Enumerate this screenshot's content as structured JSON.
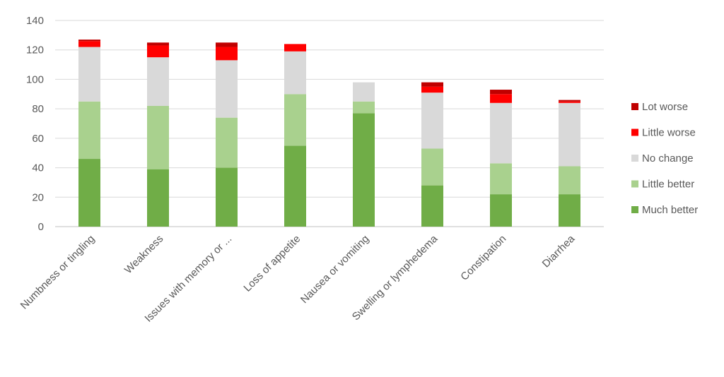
{
  "chart_data": {
    "type": "bar",
    "stacked": true,
    "title": "",
    "xlabel": "",
    "ylabel": "",
    "ylim": [
      0,
      140
    ],
    "yticks": [
      0,
      20,
      40,
      60,
      80,
      100,
      120,
      140
    ],
    "grid": true,
    "legend_position": "right",
    "categories": [
      "Numbness or tingling",
      "Weakness",
      "Issues with memory or ...",
      "Loss of appetite",
      "Nausea or vomiting",
      "Swelling or lymphedema",
      "Constipation",
      "Diarrhea"
    ],
    "series": [
      {
        "name": "Much better",
        "color": "#70ad47",
        "values": [
          46,
          39,
          40,
          55,
          77,
          28,
          22,
          22
        ]
      },
      {
        "name": "Little better",
        "color": "#a9d18e",
        "values": [
          39,
          43,
          34,
          35,
          8,
          25,
          21,
          19
        ]
      },
      {
        "name": "No change",
        "color": "#d9d9d9",
        "values": [
          37,
          33,
          39,
          29,
          13,
          38,
          41,
          43
        ]
      },
      {
        "name": "Little worse",
        "color": "#ff0000",
        "values": [
          4,
          8,
          9,
          5,
          0,
          4,
          6,
          1
        ]
      },
      {
        "name": "Lot worse",
        "color": "#c00000",
        "values": [
          1,
          2,
          3,
          0,
          0,
          3,
          3,
          1
        ]
      }
    ]
  }
}
